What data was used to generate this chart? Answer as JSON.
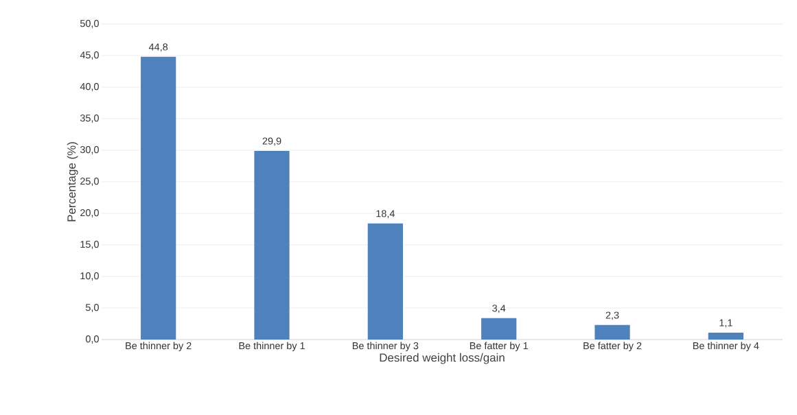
{
  "chart_data": {
    "type": "bar",
    "xlabel": "Desired weight loss/gain",
    "ylabel": "Percentage (%)",
    "categories": [
      "Be thinner by 2",
      "Be thinner by 1",
      "Be thinner by 3",
      "Be fatter by 1",
      "Be fatter by 2",
      "Be thinner by 4"
    ],
    "values": [
      44.8,
      29.9,
      18.4,
      3.4,
      2.3,
      1.1
    ],
    "value_labels": [
      "44,8",
      "29,9",
      "18,4",
      "3,4",
      "2,3",
      "1,1"
    ],
    "color": "#4f81bd",
    "ylim": [
      0,
      50
    ],
    "yticks": [
      {
        "value": 0,
        "label": "0,0"
      },
      {
        "value": 5,
        "label": "5,0"
      },
      {
        "value": 10,
        "label": "10,0"
      },
      {
        "value": 15,
        "label": "15,0"
      },
      {
        "value": 20,
        "label": "20,0"
      },
      {
        "value": 25,
        "label": "25,0"
      },
      {
        "value": 30,
        "label": "30,0"
      },
      {
        "value": 35,
        "label": "35,0"
      },
      {
        "value": 40,
        "label": "40,0"
      },
      {
        "value": 45,
        "label": "45,0"
      },
      {
        "value": 50,
        "label": "50,0"
      }
    ],
    "grid": "y"
  }
}
